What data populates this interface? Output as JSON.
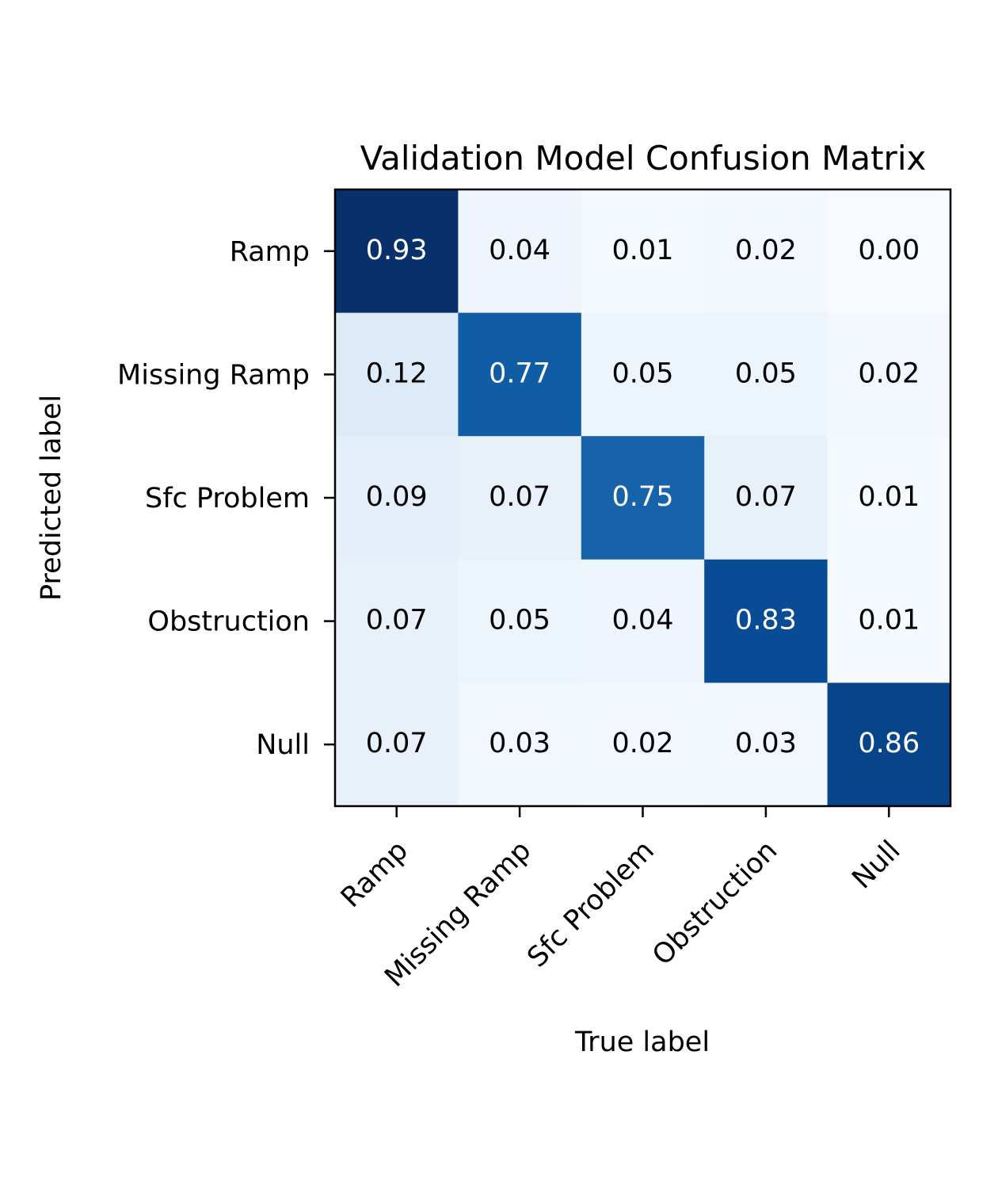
{
  "chart_data": {
    "type": "heatmap",
    "title": "Validation Model Confusion Matrix",
    "xlabel": "True label",
    "ylabel": "Predicted label",
    "x_categories": [
      "Ramp",
      "Missing Ramp",
      "Sfc Problem",
      "Obstruction",
      "Null"
    ],
    "y_categories": [
      "Ramp",
      "Missing Ramp",
      "Sfc Problem",
      "Obstruction",
      "Null"
    ],
    "values": [
      [
        0.93,
        0.04,
        0.01,
        0.02,
        0.0
      ],
      [
        0.12,
        0.77,
        0.05,
        0.05,
        0.02
      ],
      [
        0.09,
        0.07,
        0.75,
        0.07,
        0.01
      ],
      [
        0.07,
        0.05,
        0.04,
        0.83,
        0.01
      ],
      [
        0.07,
        0.03,
        0.02,
        0.03,
        0.86
      ]
    ],
    "value_format": "0.00",
    "colormap": "Blues",
    "colormap_stops": [
      "#f7fbff",
      "#deebf7",
      "#c6dbef",
      "#9ecae1",
      "#6baed6",
      "#4292c6",
      "#2171b5",
      "#08519c",
      "#08306b"
    ],
    "vrange": [
      0.0,
      0.93
    ],
    "text_color_dark": "#000000",
    "text_color_light": "#ffffff",
    "grid": false,
    "colorbar": false
  }
}
